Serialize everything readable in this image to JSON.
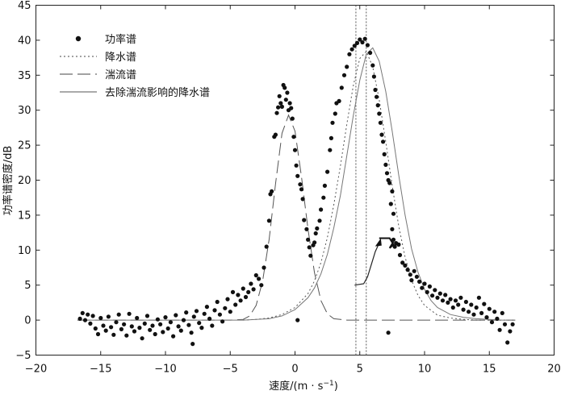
{
  "chart_data": {
    "type": "scatter",
    "xlabel": "速度/(m · s",
    "xlabel_sup": "−1",
    "xlabel_close": ")",
    "ylabel": "功率谱密度/dB",
    "xlim": [
      -20,
      20
    ],
    "ylim": [
      -5,
      45
    ],
    "xticks": [
      "−20",
      "−15",
      "−10",
      "−5",
      "0",
      "5",
      "10",
      "15",
      "20"
    ],
    "yticks": [
      "−5",
      "0",
      "5",
      "10",
      "15",
      "20",
      "25",
      "30",
      "35",
      "40",
      "45"
    ],
    "grid": false,
    "legend_position": "top-left",
    "legend": [
      "功率谱",
      "降水谱",
      "湍流谱",
      "去除湍流影响的降水谱"
    ],
    "vlines": [
      4.7,
      5.5
    ],
    "series": [
      {
        "name": "功率谱",
        "style": "dots",
        "points": [
          [
            -16.6,
            0.2
          ],
          [
            -16.4,
            1.0
          ],
          [
            -16.2,
            0.0
          ],
          [
            -16.0,
            0.8
          ],
          [
            -15.8,
            -0.5
          ],
          [
            -15.6,
            0.6
          ],
          [
            -15.4,
            -1.2
          ],
          [
            -15.2,
            -2.0
          ],
          [
            -15.0,
            0.3
          ],
          [
            -14.8,
            -0.8
          ],
          [
            -14.6,
            -1.5
          ],
          [
            -14.4,
            0.5
          ],
          [
            -14.2,
            -1.0
          ],
          [
            -14.0,
            -2.1
          ],
          [
            -13.8,
            -0.3
          ],
          [
            -13.6,
            0.8
          ],
          [
            -13.4,
            -1.3
          ],
          [
            -13.2,
            -0.6
          ],
          [
            -13.0,
            -2.2
          ],
          [
            -12.8,
            0.9
          ],
          [
            -12.6,
            -0.9
          ],
          [
            -12.4,
            -1.6
          ],
          [
            -12.2,
            0.3
          ],
          [
            -12.0,
            -1.1
          ],
          [
            -11.8,
            -2.6
          ],
          [
            -11.6,
            -0.5
          ],
          [
            -11.4,
            0.6
          ],
          [
            -11.2,
            -1.4
          ],
          [
            -11.0,
            -0.8
          ],
          [
            -10.8,
            -2.0
          ],
          [
            -10.6,
            0.1
          ],
          [
            -10.4,
            -0.6
          ],
          [
            -10.2,
            -1.7
          ],
          [
            -10.0,
            0.4
          ],
          [
            -9.8,
            -1.2
          ],
          [
            -9.6,
            -0.3
          ],
          [
            -9.4,
            -2.3
          ],
          [
            -9.2,
            0.7
          ],
          [
            -9.0,
            -0.9
          ],
          [
            -8.8,
            -1.5
          ],
          [
            -8.6,
            0.0
          ],
          [
            -8.4,
            1.1
          ],
          [
            -8.2,
            -0.7
          ],
          [
            -8.0,
            -1.8
          ],
          [
            -7.8,
            0.5
          ],
          [
            -7.6,
            1.3
          ],
          [
            -7.4,
            -0.4
          ],
          [
            -7.2,
            -1.1
          ],
          [
            -7.0,
            0.9
          ],
          [
            -6.8,
            1.9
          ],
          [
            -6.6,
            0.2
          ],
          [
            -6.4,
            -0.8
          ],
          [
            -6.2,
            1.4
          ],
          [
            -6.0,
            2.6
          ],
          [
            -5.8,
            0.8
          ],
          [
            -5.6,
            -0.2
          ],
          [
            -5.4,
            1.7
          ],
          [
            -5.2,
            3.0
          ],
          [
            -5.0,
            1.2
          ],
          [
            -4.8,
            4.0
          ],
          [
            -4.6,
            2.2
          ],
          [
            -4.4,
            3.6
          ],
          [
            -4.2,
            2.8
          ],
          [
            -4.0,
            4.5
          ],
          [
            -3.8,
            3.3
          ],
          [
            -3.6,
            4.0
          ],
          [
            -3.4,
            5.2
          ],
          [
            -3.2,
            4.4
          ],
          [
            -3.0,
            6.4
          ],
          [
            -2.8,
            5.9
          ],
          [
            -2.6,
            5.0
          ],
          [
            -2.4,
            7.5
          ],
          [
            -2.2,
            10.5
          ],
          [
            -2.0,
            14.2
          ],
          [
            -1.9,
            18.0
          ],
          [
            -1.8,
            18.4
          ],
          [
            -1.6,
            26.2
          ],
          [
            -1.5,
            26.5
          ],
          [
            -1.4,
            29.6
          ],
          [
            -1.3,
            30.4
          ],
          [
            -1.2,
            32.0
          ],
          [
            -1.1,
            31.0
          ],
          [
            -1.0,
            30.5
          ],
          [
            -0.9,
            33.6
          ],
          [
            -0.8,
            33.2
          ],
          [
            -0.7,
            31.5
          ],
          [
            -0.6,
            32.5
          ],
          [
            -0.5,
            30.0
          ],
          [
            -0.4,
            31.0
          ],
          [
            -0.3,
            30.3
          ],
          [
            -0.2,
            28.8
          ],
          [
            -0.1,
            26.2
          ],
          [
            0.0,
            24.3
          ],
          [
            0.1,
            22.1
          ],
          [
            0.2,
            20.6
          ],
          [
            0.4,
            19.4
          ],
          [
            0.5,
            18.7
          ],
          [
            0.6,
            17.3
          ],
          [
            0.7,
            14.3
          ],
          [
            0.9,
            13.0
          ],
          [
            1.0,
            11.5
          ],
          [
            1.1,
            10.4
          ],
          [
            1.2,
            9.2
          ],
          [
            1.4,
            10.7
          ],
          [
            1.5,
            11.1
          ],
          [
            1.6,
            12.4
          ],
          [
            1.7,
            13.1
          ],
          [
            1.9,
            14.2
          ],
          [
            2.0,
            15.8
          ],
          [
            2.2,
            17.5
          ],
          [
            2.3,
            19.2
          ],
          [
            2.5,
            21.2
          ],
          [
            2.7,
            24.3
          ],
          [
            2.8,
            26.0
          ],
          [
            2.9,
            28.2
          ],
          [
            3.1,
            29.5
          ],
          [
            3.2,
            31.0
          ],
          [
            3.4,
            31.3
          ],
          [
            3.6,
            33.2
          ],
          [
            3.8,
            35.0
          ],
          [
            4.0,
            36.2
          ],
          [
            4.2,
            38.0
          ],
          [
            4.4,
            38.7
          ],
          [
            4.6,
            39.2
          ],
          [
            4.8,
            39.6
          ],
          [
            5.0,
            40.1
          ],
          [
            5.2,
            39.7
          ],
          [
            5.4,
            40.2
          ],
          [
            5.6,
            39.3
          ],
          [
            5.8,
            38.2
          ],
          [
            6.0,
            36.4
          ],
          [
            6.1,
            34.8
          ],
          [
            6.2,
            32.9
          ],
          [
            6.3,
            31.9
          ],
          [
            6.4,
            30.7
          ],
          [
            6.5,
            29.5
          ],
          [
            6.6,
            28.2
          ],
          [
            6.7,
            26.5
          ],
          [
            6.8,
            25.5
          ],
          [
            6.9,
            23.7
          ],
          [
            7.0,
            22.2
          ],
          [
            7.1,
            21.0
          ],
          [
            7.2,
            20.0
          ],
          [
            7.3,
            19.6
          ],
          [
            7.5,
            18.4
          ],
          [
            7.4,
            16.6
          ],
          [
            7.6,
            15.2
          ],
          [
            7.5,
            13.0
          ],
          [
            7.6,
            11.5
          ],
          [
            7.8,
            11.0
          ],
          [
            7.7,
            10.5
          ],
          [
            8.0,
            10.8
          ],
          [
            8.1,
            9.3
          ],
          [
            8.3,
            8.2
          ],
          [
            8.5,
            7.8
          ],
          [
            8.7,
            7.2
          ],
          [
            8.9,
            6.5
          ],
          [
            9.0,
            5.7
          ],
          [
            9.2,
            7.0
          ],
          [
            9.4,
            6.2
          ],
          [
            9.6,
            5.5
          ],
          [
            9.8,
            4.6
          ],
          [
            10.0,
            5.2
          ],
          [
            10.2,
            4.0
          ],
          [
            10.4,
            4.8
          ],
          [
            10.6,
            3.5
          ],
          [
            10.8,
            4.3
          ],
          [
            11.0,
            3.2
          ],
          [
            11.2,
            3.8
          ],
          [
            11.4,
            2.8
          ],
          [
            11.6,
            3.6
          ],
          [
            11.8,
            2.5
          ],
          [
            12.0,
            3.0
          ],
          [
            12.2,
            1.8
          ],
          [
            12.4,
            2.8
          ],
          [
            12.6,
            2.2
          ],
          [
            12.8,
            3.2
          ],
          [
            13.0,
            1.5
          ],
          [
            13.2,
            2.6
          ],
          [
            13.4,
            1.2
          ],
          [
            13.6,
            2.2
          ],
          [
            13.8,
            0.8
          ],
          [
            14.0,
            1.8
          ],
          [
            14.2,
            3.2
          ],
          [
            14.4,
            1.0
          ],
          [
            14.6,
            2.3
          ],
          [
            14.8,
            0.4
          ],
          [
            15.0,
            1.6
          ],
          [
            15.2,
            -0.3
          ],
          [
            15.4,
            1.2
          ],
          [
            15.6,
            0.2
          ],
          [
            15.8,
            -1.4
          ],
          [
            16.0,
            1.0
          ],
          [
            16.2,
            -0.6
          ],
          [
            16.4,
            -3.2
          ],
          [
            16.6,
            -1.6
          ],
          [
            16.8,
            -0.6
          ],
          [
            7.2,
            -1.8
          ],
          [
            -7.9,
            -3.4
          ],
          [
            0.2,
            0.0
          ]
        ]
      },
      {
        "name": "降水谱",
        "style": "dotted",
        "x": [
          -4,
          -3,
          -2,
          -1,
          0,
          1,
          1.5,
          2,
          2.5,
          3,
          3.5,
          4,
          4.5,
          5,
          5.5,
          6,
          6.5,
          7,
          7.5,
          8,
          8.5,
          9,
          9.5,
          10,
          11,
          12,
          13,
          14,
          15,
          16,
          17
        ],
        "y": [
          0,
          0.1,
          0.3,
          0.8,
          1.8,
          3.8,
          5.6,
          8.2,
          11.8,
          16.5,
          22.0,
          28.0,
          33.5,
          37.4,
          38.4,
          36.2,
          31.5,
          25.5,
          19.2,
          13.5,
          9.0,
          5.7,
          3.5,
          2.1,
          0.7,
          0.3,
          0.1,
          0,
          0,
          0,
          0
        ]
      },
      {
        "name": "湍流谱",
        "style": "dashed",
        "x": [
          -16.8,
          -6,
          -5,
          -4,
          -3.5,
          -3,
          -2.5,
          -2,
          -1.5,
          -1,
          -0.5,
          0,
          0.5,
          1,
          1.5,
          2,
          2.5,
          3,
          4,
          5,
          10,
          17
        ],
        "y": [
          0,
          0,
          0,
          0.1,
          0.6,
          2.1,
          5.6,
          11.5,
          19.5,
          26.7,
          29.3,
          27.0,
          20.5,
          13.0,
          6.8,
          2.8,
          0.9,
          0.2,
          0,
          0,
          0,
          0
        ]
      },
      {
        "name": "去除湍流影响的降水谱",
        "style": "solid",
        "x": [
          -16.8,
          -4,
          -2,
          -1,
          0,
          1,
          1.5,
          2,
          2.5,
          3,
          3.5,
          4,
          4.5,
          5,
          5.5,
          6,
          6.5,
          7,
          7.5,
          8,
          8.5,
          9,
          9.5,
          10,
          10.5,
          11,
          12,
          13,
          14,
          15,
          16,
          16.8
        ],
        "y": [
          0,
          0,
          0.2,
          0.6,
          1.5,
          3.2,
          4.6,
          6.6,
          9.4,
          13.2,
          17.8,
          23.5,
          29.2,
          34.3,
          38.0,
          38.9,
          37.0,
          32.7,
          27.0,
          20.8,
          15.0,
          10.2,
          6.8,
          4.4,
          2.8,
          1.8,
          0.8,
          0.4,
          0.2,
          0.1,
          0,
          0
        ]
      }
    ],
    "annotation": {
      "arrow_path": [
        [
          4.6,
          5.0
        ],
        [
          5.3,
          5.2
        ],
        [
          5.6,
          6.2
        ],
        [
          5.9,
          8.0
        ],
        [
          6.2,
          9.8
        ],
        [
          6.5,
          11.0
        ]
      ],
      "marker_bracket": [
        [
          6.5,
          11.7
        ],
        [
          7.3,
          11.7
        ],
        [
          7.6,
          10.8
        ],
        [
          7.3,
          10.3
        ],
        [
          7.6,
          11.2
        ]
      ]
    }
  }
}
